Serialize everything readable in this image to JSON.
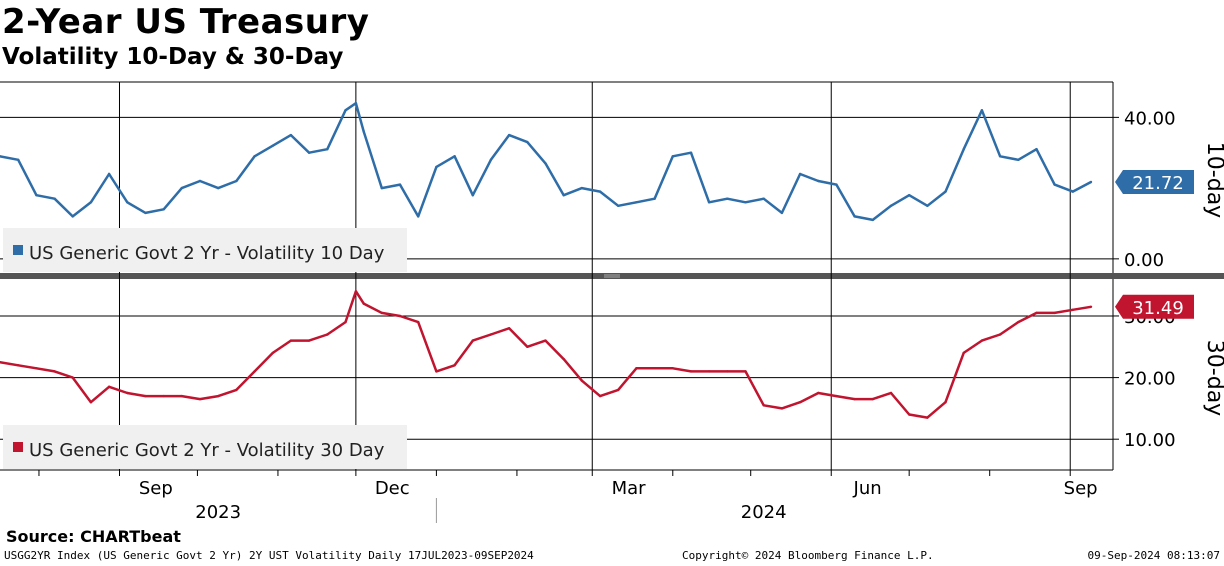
{
  "title": "2-Year US Treasury",
  "subtitle": "Volatility 10-Day & 30-Day",
  "source": "Source: CHARTbeat",
  "footer": {
    "left": "USGG2YR Index (US Generic Govt 2 Yr) 2Y UST Volatility  Daily 17JUL2023-09SEP2024",
    "center": "Copyright© 2024 Bloomberg Finance L.P.",
    "right": "09-Sep-2024 08:13:07"
  },
  "colors": {
    "series_10d": "#2e6da8",
    "series_30d": "#c0142f",
    "grid": "#000000",
    "divider": "#555555"
  },
  "x_axis": {
    "month_ticks": [
      "Sep",
      "Dec",
      "Mar",
      "Jun",
      "Sep"
    ],
    "year_labels": [
      "2023",
      "2024"
    ]
  },
  "chart_data": [
    {
      "type": "line",
      "title": "US Generic Govt 2 Yr - Volatility 10 Day",
      "axis_label": "10-day",
      "ylim": [
        -4,
        50
      ],
      "yticks": [
        0,
        40
      ],
      "ytick_labels": [
        "0.00",
        "40.00"
      ],
      "last_value_label": "21.72",
      "legend": "US Generic Govt 2 Yr - Volatility 10 Day",
      "x": [
        "2023-07-17",
        "2023-07-24",
        "2023-07-31",
        "2023-08-07",
        "2023-08-14",
        "2023-08-21",
        "2023-08-28",
        "2023-09-04",
        "2023-09-11",
        "2023-09-18",
        "2023-09-25",
        "2023-10-02",
        "2023-10-09",
        "2023-10-16",
        "2023-10-23",
        "2023-10-30",
        "2023-11-06",
        "2023-11-13",
        "2023-11-20",
        "2023-11-27",
        "2023-12-01",
        "2023-12-04",
        "2023-12-11",
        "2023-12-18",
        "2023-12-25",
        "2024-01-01",
        "2024-01-08",
        "2024-01-15",
        "2024-01-22",
        "2024-01-29",
        "2024-02-05",
        "2024-02-12",
        "2024-02-19",
        "2024-02-26",
        "2024-03-04",
        "2024-03-11",
        "2024-03-18",
        "2024-03-25",
        "2024-04-01",
        "2024-04-08",
        "2024-04-15",
        "2024-04-22",
        "2024-04-29",
        "2024-05-06",
        "2024-05-13",
        "2024-05-20",
        "2024-05-27",
        "2024-06-03",
        "2024-06-10",
        "2024-06-17",
        "2024-06-24",
        "2024-07-01",
        "2024-07-08",
        "2024-07-15",
        "2024-07-22",
        "2024-07-29",
        "2024-08-05",
        "2024-08-12",
        "2024-08-19",
        "2024-08-26",
        "2024-09-02",
        "2024-09-09"
      ],
      "values": [
        29,
        28,
        18,
        17,
        12,
        16,
        24,
        16,
        13,
        14,
        20,
        22,
        20,
        22,
        29,
        32,
        35,
        30,
        31,
        42,
        44,
        36,
        20,
        21,
        12,
        26,
        29,
        18,
        28,
        35,
        33,
        27,
        18,
        20,
        19,
        15,
        16,
        17,
        29,
        30,
        16,
        17,
        16,
        17,
        13,
        24,
        22,
        21,
        12,
        11,
        15,
        18,
        15,
        19,
        31,
        42,
        29,
        28,
        31,
        21,
        19,
        21.72
      ]
    },
    {
      "type": "line",
      "title": "US Generic Govt 2 Yr - Volatility 30 Day",
      "axis_label": "30-day",
      "ylim": [
        5,
        36
      ],
      "yticks": [
        10,
        20,
        30
      ],
      "ytick_labels": [
        "10.00",
        "20.00",
        "30.00"
      ],
      "last_value_label": "31.49",
      "legend": "US Generic Govt 2 Yr - Volatility 30 Day",
      "x": [
        "2023-07-17",
        "2023-07-24",
        "2023-07-31",
        "2023-08-07",
        "2023-08-14",
        "2023-08-21",
        "2023-08-28",
        "2023-09-04",
        "2023-09-11",
        "2023-09-18",
        "2023-09-25",
        "2023-10-02",
        "2023-10-09",
        "2023-10-16",
        "2023-10-23",
        "2023-10-30",
        "2023-11-06",
        "2023-11-13",
        "2023-11-20",
        "2023-11-27",
        "2023-12-01",
        "2023-12-04",
        "2023-12-11",
        "2023-12-18",
        "2023-12-25",
        "2024-01-01",
        "2024-01-08",
        "2024-01-15",
        "2024-01-22",
        "2024-01-29",
        "2024-02-05",
        "2024-02-12",
        "2024-02-19",
        "2024-02-26",
        "2024-03-04",
        "2024-03-11",
        "2024-03-18",
        "2024-03-25",
        "2024-04-01",
        "2024-04-08",
        "2024-04-15",
        "2024-04-22",
        "2024-04-29",
        "2024-05-06",
        "2024-05-13",
        "2024-05-20",
        "2024-05-27",
        "2024-06-03",
        "2024-06-10",
        "2024-06-17",
        "2024-06-24",
        "2024-07-01",
        "2024-07-08",
        "2024-07-15",
        "2024-07-22",
        "2024-07-29",
        "2024-08-05",
        "2024-08-12",
        "2024-08-19",
        "2024-08-26",
        "2024-09-02",
        "2024-09-09"
      ],
      "values": [
        22.5,
        22,
        21.5,
        21,
        20,
        16,
        18.5,
        17.5,
        17,
        17,
        17,
        16.5,
        17,
        18,
        21,
        24,
        26,
        26,
        27,
        29,
        34,
        32,
        30.5,
        30,
        29,
        21,
        22,
        26,
        27,
        28,
        25,
        26,
        23,
        19.5,
        17,
        18,
        21.5,
        21.5,
        21.5,
        21,
        21,
        21,
        21,
        15.5,
        15,
        16,
        17.5,
        17,
        16.5,
        16.5,
        17.5,
        14,
        13.5,
        16,
        24,
        26,
        27,
        29,
        30.5,
        30.5,
        31,
        31.49
      ]
    }
  ]
}
